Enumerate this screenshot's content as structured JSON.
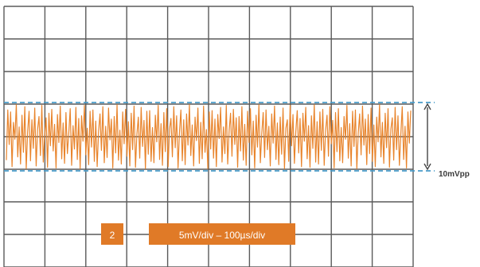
{
  "chart_data": {
    "type": "line",
    "title": "",
    "xlabel": "",
    "ylabel": "",
    "grid": true,
    "grid_divisions": {
      "x": 10,
      "y": 8
    },
    "series": [
      {
        "color": "#e8842c",
        "description_units": "mV",
        "y": [
          -3.6,
          4.1,
          -1.2,
          3.8,
          -4.6,
          2.2,
          -0.4,
          4.9,
          -3.1,
          1.5,
          -4.2,
          3.3,
          -2.4,
          4.6,
          -4.9,
          0.8,
          3.9,
          -3.7,
          2.6,
          -1.8,
          4.4,
          -4.5,
          1.1,
          3.1,
          -2.9,
          4.8,
          -3.9,
          0.2,
          2.9,
          -4.7,
          3.6,
          -1.4,
          4.2,
          -2.2,
          1.9,
          -4.8,
          3.4,
          -0.9,
          4.7,
          -3.4,
          2.1,
          -4.1,
          3.7,
          -2.6,
          0.6,
          4.3,
          -4.4,
          1.7,
          -1.9,
          4.5,
          -3.5,
          2.8,
          -4.9,
          3.2,
          -0.7,
          4.8,
          -2.8,
          1.3,
          -4.3,
          3.9,
          -1.6,
          4.1,
          -3.8,
          2.4,
          -4.6,
          0.9,
          3.5,
          -2.1,
          4.6,
          -4.0,
          1.6,
          -3.2,
          4.4,
          -0.5,
          2.7,
          -4.8,
          3.1,
          -2.5,
          4.9,
          -3.6,
          1.0,
          -4.2,
          3.8,
          -1.1,
          4.2,
          -3.0,
          2.3,
          -4.5,
          3.6,
          -2.0,
          4.7,
          -4.7,
          0.4,
          3.0,
          -3.3,
          4.5,
          -1.5,
          2.5,
          -4.9,
          3.9,
          -2.7,
          4.0,
          -3.8,
          1.4,
          -4.0,
          3.3,
          -0.8,
          4.8,
          -3.5,
          2.0,
          -4.4,
          3.7,
          -2.3,
          4.3,
          -4.6,
          1.2,
          2.8,
          -3.1,
          4.6,
          -1.7,
          3.2,
          -4.8,
          0.7,
          4.1,
          -3.7,
          2.6,
          -4.3,
          3.5,
          -1.3,
          4.9,
          -2.9,
          1.8,
          -4.5,
          3.0,
          -0.6,
          4.4,
          -4.1,
          2.2,
          -3.4,
          4.7,
          -2.4,
          1.1,
          -4.9,
          3.8,
          -1.9,
          4.0,
          -3.3,
          2.7,
          -4.6,
          3.4,
          -0.3,
          4.5,
          -3.9,
          1.5,
          -2.6,
          4.8,
          -4.2,
          0.9,
          3.6,
          -3.0,
          4.2,
          -1.2,
          2.9,
          -4.7,
          3.1,
          -2.2,
          4.6,
          -3.6,
          1.9,
          -4.4,
          3.9,
          -0.9,
          4.3,
          -2.8,
          2.4,
          -4.8,
          3.3,
          -1.6,
          4.9,
          -4.0,
          0.5,
          3.7,
          -3.2,
          4.1,
          -2.0,
          1.6,
          -4.5,
          3.5,
          -1.0,
          4.7,
          -3.5,
          2.1,
          -4.3,
          3.0,
          -2.7,
          4.4,
          -4.9,
          1.3,
          2.6,
          -3.8,
          4.8,
          -1.4,
          3.4,
          -4.1,
          0.8,
          4.0,
          -2.5,
          2.8,
          -4.6,
          3.6,
          -0.7,
          4.5,
          -3.4,
          1.7,
          -4.7,
          3.2,
          -1.8,
          4.9,
          -3.9,
          2.3,
          -4.2,
          3.8,
          -2.1,
          4.2,
          -4.4,
          1.0,
          3.3,
          -3.0,
          4.6,
          -1.1,
          2.5,
          -4.8,
          3.7,
          -2.3,
          4.3,
          -3.7,
          1.4,
          -4.0,
          3.1,
          -0.4,
          4.8,
          -3.3,
          2.0,
          -4.5,
          3.9,
          -1.5,
          4.1,
          -4.9,
          0.6,
          3.5,
          -2.8,
          4.7,
          -1.3,
          2.7,
          -4.3,
          3.4,
          -2.6,
          4.4,
          -3.8,
          1.8,
          -4.6,
          3.0,
          -0.8,
          4.9,
          -3.1,
          2.2,
          -4.1,
          3.6,
          -1.7,
          4.3,
          -4.7,
          1.2,
          2.9,
          -3.6,
          4.5,
          -2.0,
          3.2,
          -4.4,
          0.3,
          4.6,
          -3.5,
          1.6,
          -4.8,
          3.8,
          -1.0,
          4.0
        ]
      }
    ],
    "ylim": [
      -20,
      20
    ],
    "reference_lines": {
      "upper_mV": 5,
      "lower_mV": -5,
      "style": "dashed",
      "color": "#4a9cc9"
    }
  },
  "annotations": {
    "vpp_label": "10mVpp",
    "channel_badge": "2",
    "scale_label": "5mV/div – 100µs/div",
    "badge_color": "#e07a27",
    "badge_text_color": "#ffffff",
    "grid_color": "#5a5a5a",
    "arrow_color": "#444444"
  }
}
